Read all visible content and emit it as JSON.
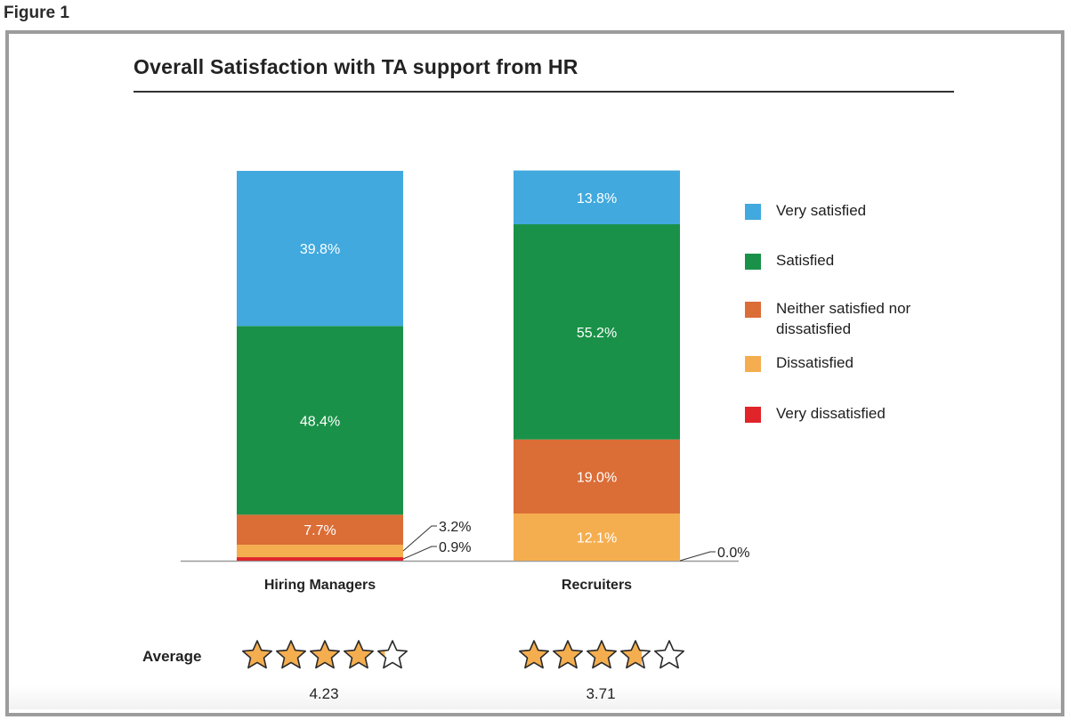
{
  "figure_label": "Figure 1",
  "average_label": "Average",
  "chart_data": {
    "type": "bar",
    "stacked": true,
    "title": "Overall Satisfaction with TA support from HR",
    "categories": [
      "Hiring Managers",
      "Recruiters"
    ],
    "series": [
      {
        "name": "Very dissatisfied",
        "color": "#e0242a",
        "values": [
          0.9,
          0.0
        ],
        "labels": [
          "0.9%",
          "0.0%"
        ]
      },
      {
        "name": "Dissatisfied",
        "color": "#f5ae4f",
        "values": [
          3.2,
          12.1
        ],
        "labels": [
          "3.2%",
          "12.1%"
        ]
      },
      {
        "name": "Neither satisfied nor dissatisfied",
        "color": "#db6d36",
        "values": [
          7.7,
          19.0
        ],
        "labels": [
          "7.7%",
          "19.0%"
        ]
      },
      {
        "name": "Satisfied",
        "color": "#1a9148",
        "values": [
          48.4,
          55.2
        ],
        "labels": [
          "48.4%",
          "55.2%"
        ]
      },
      {
        "name": "Very satisfied",
        "color": "#41a9de",
        "values": [
          39.8,
          13.8
        ],
        "labels": [
          "39.8%",
          "13.8%"
        ]
      }
    ],
    "legend_order": [
      "Very satisfied",
      "Satisfied",
      "Neither satisfied nor dissatisfied",
      "Dissatisfied",
      "Very dissatisfied"
    ],
    "ylim": [
      0,
      100
    ],
    "averages": [
      {
        "category": "Hiring Managers",
        "value": 4.23,
        "label": "4.23",
        "stars_max": 5
      },
      {
        "category": "Recruiters",
        "value": 3.71,
        "label": "3.71",
        "stars_max": 5
      }
    ]
  }
}
